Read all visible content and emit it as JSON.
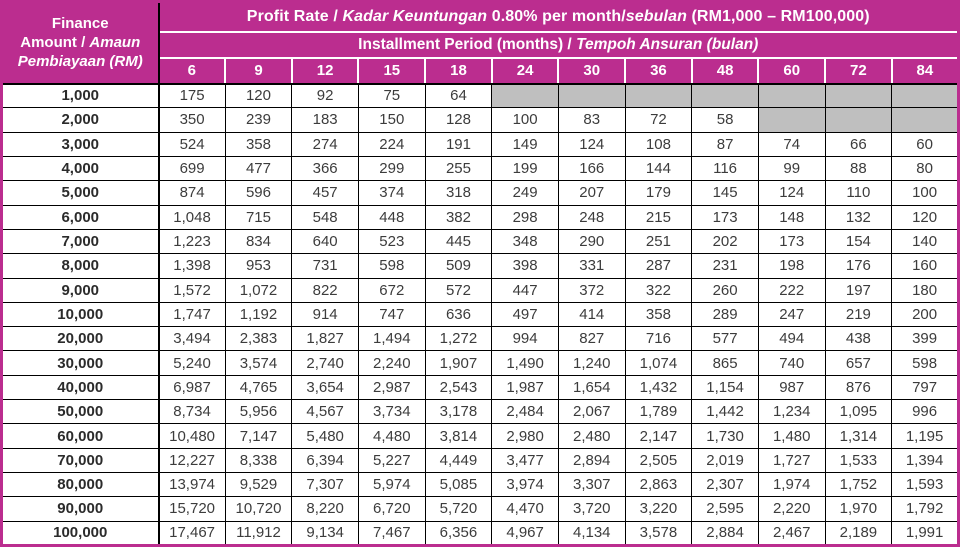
{
  "colors": {
    "header_magenta": "#BB2D8F",
    "na_gray": "#BFBFBF",
    "border_black": "#000000",
    "header_text": "#FFFFFF",
    "body_text": "#3C3C3C"
  },
  "table": {
    "corner": {
      "line1": "Finance",
      "line2a": "Amount / ",
      "line2b": "Amaun",
      "line3": "Pembiayaan (RM)"
    },
    "profit_rate": {
      "en": "Profit Rate / ",
      "bm_italic": "Kadar Keuntungan",
      "rate": " 0.80% per month/",
      "sebulan_italic": "sebulan",
      "range": " (RM1,000 – RM100,000)"
    },
    "period": {
      "en": "Installment Period (months) / ",
      "bm_italic": "Tempoh Ansuran (bulan)"
    },
    "months": [
      "6",
      "9",
      "12",
      "15",
      "18",
      "24",
      "30",
      "36",
      "48",
      "60",
      "72",
      "84"
    ],
    "rows": [
      {
        "amount": "1,000",
        "values": [
          "175",
          "120",
          "92",
          "75",
          "64",
          null,
          null,
          null,
          null,
          null,
          null,
          null
        ]
      },
      {
        "amount": "2,000",
        "values": [
          "350",
          "239",
          "183",
          "150",
          "128",
          "100",
          "83",
          "72",
          "58",
          null,
          null,
          null
        ]
      },
      {
        "amount": "3,000",
        "values": [
          "524",
          "358",
          "274",
          "224",
          "191",
          "149",
          "124",
          "108",
          "87",
          "74",
          "66",
          "60"
        ]
      },
      {
        "amount": "4,000",
        "values": [
          "699",
          "477",
          "366",
          "299",
          "255",
          "199",
          "166",
          "144",
          "116",
          "99",
          "88",
          "80"
        ]
      },
      {
        "amount": "5,000",
        "values": [
          "874",
          "596",
          "457",
          "374",
          "318",
          "249",
          "207",
          "179",
          "145",
          "124",
          "110",
          "100"
        ]
      },
      {
        "amount": "6,000",
        "values": [
          "1,048",
          "715",
          "548",
          "448",
          "382",
          "298",
          "248",
          "215",
          "173",
          "148",
          "132",
          "120"
        ]
      },
      {
        "amount": "7,000",
        "values": [
          "1,223",
          "834",
          "640",
          "523",
          "445",
          "348",
          "290",
          "251",
          "202",
          "173",
          "154",
          "140"
        ]
      },
      {
        "amount": "8,000",
        "values": [
          "1,398",
          "953",
          "731",
          "598",
          "509",
          "398",
          "331",
          "287",
          "231",
          "198",
          "176",
          "160"
        ]
      },
      {
        "amount": "9,000",
        "values": [
          "1,572",
          "1,072",
          "822",
          "672",
          "572",
          "447",
          "372",
          "322",
          "260",
          "222",
          "197",
          "180"
        ]
      },
      {
        "amount": "10,000",
        "values": [
          "1,747",
          "1,192",
          "914",
          "747",
          "636",
          "497",
          "414",
          "358",
          "289",
          "247",
          "219",
          "200"
        ]
      },
      {
        "amount": "20,000",
        "values": [
          "3,494",
          "2,383",
          "1,827",
          "1,494",
          "1,272",
          "994",
          "827",
          "716",
          "577",
          "494",
          "438",
          "399"
        ]
      },
      {
        "amount": "30,000",
        "values": [
          "5,240",
          "3,574",
          "2,740",
          "2,240",
          "1,907",
          "1,490",
          "1,240",
          "1,074",
          "865",
          "740",
          "657",
          "598"
        ]
      },
      {
        "amount": "40,000",
        "values": [
          "6,987",
          "4,765",
          "3,654",
          "2,987",
          "2,543",
          "1,987",
          "1,654",
          "1,432",
          "1,154",
          "987",
          "876",
          "797"
        ]
      },
      {
        "amount": "50,000",
        "values": [
          "8,734",
          "5,956",
          "4,567",
          "3,734",
          "3,178",
          "2,484",
          "2,067",
          "1,789",
          "1,442",
          "1,234",
          "1,095",
          "996"
        ]
      },
      {
        "amount": "60,000",
        "values": [
          "10,480",
          "7,147",
          "5,480",
          "4,480",
          "3,814",
          "2,980",
          "2,480",
          "2,147",
          "1,730",
          "1,480",
          "1,314",
          "1,195"
        ]
      },
      {
        "amount": "70,000",
        "values": [
          "12,227",
          "8,338",
          "6,394",
          "5,227",
          "4,449",
          "3,477",
          "2,894",
          "2,505",
          "2,019",
          "1,727",
          "1,533",
          "1,394"
        ]
      },
      {
        "amount": "80,000",
        "values": [
          "13,974",
          "9,529",
          "7,307",
          "5,974",
          "5,085",
          "3,974",
          "3,307",
          "2,863",
          "2,307",
          "1,974",
          "1,752",
          "1,593"
        ]
      },
      {
        "amount": "90,000",
        "values": [
          "15,720",
          "10,720",
          "8,220",
          "6,720",
          "5,720",
          "4,470",
          "3,720",
          "3,220",
          "2,595",
          "2,220",
          "1,970",
          "1,792"
        ]
      },
      {
        "amount": "100,000",
        "values": [
          "17,467",
          "11,912",
          "9,134",
          "7,467",
          "6,356",
          "4,967",
          "4,134",
          "3,578",
          "2,884",
          "2,467",
          "2,189",
          "1,991"
        ]
      }
    ]
  }
}
